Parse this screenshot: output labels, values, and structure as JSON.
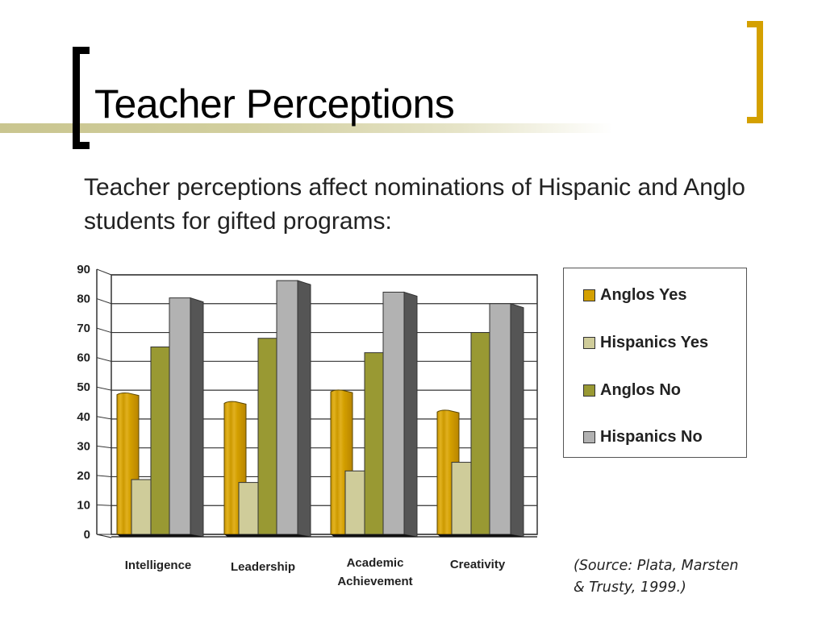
{
  "slide": {
    "title": "Teacher Perceptions",
    "subtitle": "Teacher perceptions affect nominations of Hispanic and Anglo students for gifted programs:",
    "source": [
      "(Source: Plata, Marsten",
      "& Trusty, 1999.)"
    ],
    "colors": {
      "left_bracket": "#000000",
      "right_bracket": "#d4a000",
      "stripe": "#c9c58f"
    }
  },
  "chart_data": {
    "type": "bar",
    "style": "3d-clustered-column",
    "title": "",
    "xlabel": "",
    "ylabel": "",
    "ylim": [
      0,
      90
    ],
    "yticks": [
      0,
      10,
      20,
      30,
      40,
      50,
      60,
      70,
      80,
      90
    ],
    "grid": true,
    "legend_position": "right",
    "categories": [
      "Intelligence",
      "Leadership",
      "Academic Achievement",
      "Creativity"
    ],
    "category_label_lines": [
      [
        "Intelligence"
      ],
      [
        "Leadership"
      ],
      [
        "Academic",
        "Achievement"
      ],
      [
        "Creativity"
      ]
    ],
    "series": [
      {
        "name": "Anglos Yes",
        "color": "#d4a000",
        "values": [
          49,
          46,
          50,
          43
        ]
      },
      {
        "name": "Hispanics Yes",
        "color": "#cfcc9a",
        "values": [
          19,
          18,
          22,
          25
        ]
      },
      {
        "name": "Anglos No",
        "color": "#999933",
        "values": [
          65,
          68,
          63,
          70
        ]
      },
      {
        "name": "Hispanics No",
        "color": "#b2b2b2",
        "values": [
          82,
          88,
          84,
          80
        ]
      }
    ]
  }
}
